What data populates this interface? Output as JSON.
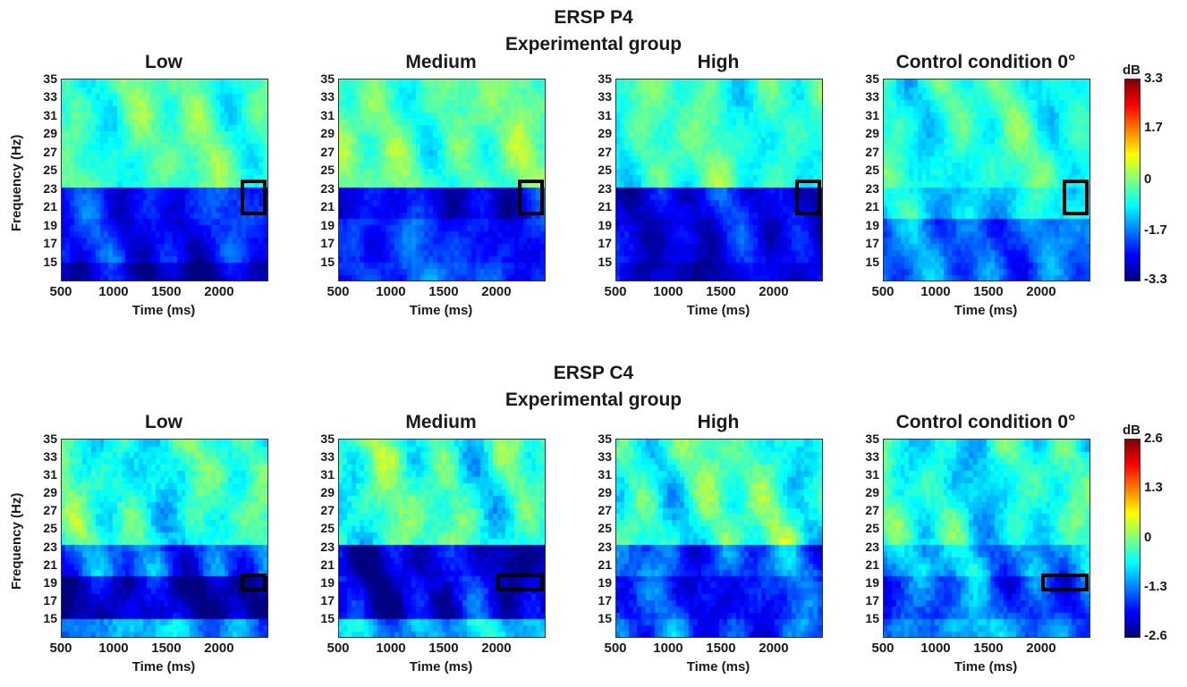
{
  "chart_data": [
    {
      "type": "heatmap",
      "section_title": "ERSP P4",
      "section_subtitle": "Experimental group",
      "ylabel": "Frequency (Hz)",
      "xlabel": "Time (ms)",
      "yticks": [
        "35",
        "33",
        "31",
        "29",
        "27",
        "25",
        "23",
        "21",
        "19",
        "17",
        "15"
      ],
      "xticks": [
        "500",
        "1000",
        "1500",
        "2000"
      ],
      "xlim": [
        500,
        2450
      ],
      "ylim": [
        13,
        35
      ],
      "colorbar": {
        "unit": "dB",
        "ticks": [
          "3.3",
          "1.7",
          "0",
          "-1.7",
          "-3.3"
        ],
        "range": [
          -3.3,
          3.3
        ],
        "colormap": "jet"
      },
      "panels": [
        {
          "title": "Low",
          "roi": {
            "time": [
              2200,
              2450
            ],
            "freq": [
              20,
              24
            ]
          },
          "mean_db_by_band": {
            "13-15": -2.9,
            "15-20": -2.4,
            "20-23": -2.3,
            "23-35": -0.4
          }
        },
        {
          "title": "Medium",
          "roi": {
            "time": [
              2200,
              2450
            ],
            "freq": [
              20,
              24
            ]
          },
          "mean_db_by_band": {
            "13-15": -2.0,
            "15-20": -2.2,
            "20-23": -2.6,
            "23-35": -0.3
          }
        },
        {
          "title": "High",
          "roi": {
            "time": [
              2200,
              2450
            ],
            "freq": [
              20,
              24
            ]
          },
          "mean_db_by_band": {
            "13-15": -2.8,
            "15-20": -2.6,
            "20-23": -2.5,
            "23-35": -0.5
          }
        },
        {
          "title": "Control condition 0°",
          "roi": {
            "time": [
              2200,
              2450
            ],
            "freq": [
              20,
              24
            ]
          },
          "mean_db_by_band": {
            "13-15": -1.8,
            "15-20": -1.8,
            "20-23": -1.0,
            "23-35": -0.6
          }
        }
      ]
    },
    {
      "type": "heatmap",
      "section_title": "ERSP C4",
      "section_subtitle": "Experimental group",
      "ylabel": "Frequency (Hz)",
      "xlabel": "Time (ms)",
      "yticks": [
        "35",
        "33",
        "31",
        "29",
        "27",
        "25",
        "23",
        "21",
        "19",
        "17",
        "15"
      ],
      "xticks": [
        "500",
        "1000",
        "1500",
        "2000"
      ],
      "xlim": [
        500,
        2450
      ],
      "ylim": [
        13,
        35
      ],
      "colorbar": {
        "unit": "dB",
        "ticks": [
          "2.6",
          "1.3",
          "0",
          "-1.3",
          "-2.6"
        ],
        "range": [
          -2.6,
          2.6
        ],
        "colormap": "jet"
      },
      "panels": [
        {
          "title": "Low",
          "roi": {
            "time": [
              2200,
              2450
            ],
            "freq": [
              18,
              20
            ]
          },
          "mean_db_by_band": {
            "13-15": -1.1,
            "15-20": -2.3,
            "20-23": -1.5,
            "23-35": -0.5
          }
        },
        {
          "title": "Medium",
          "roi": {
            "time": [
              2000,
              2450
            ],
            "freq": [
              18,
              20
            ]
          },
          "mean_db_by_band": {
            "13-15": -1.0,
            "15-20": -2.1,
            "20-23": -2.2,
            "23-35": -0.4
          }
        },
        {
          "title": "High",
          "roi": null,
          "mean_db_by_band": {
            "13-15": -1.6,
            "15-20": -1.8,
            "20-23": -1.5,
            "23-35": -0.4
          }
        },
        {
          "title": "Control condition 0°",
          "roi": {
            "time": [
              2000,
              2450
            ],
            "freq": [
              18,
              20
            ]
          },
          "mean_db_by_band": {
            "13-15": -1.2,
            "15-20": -1.5,
            "20-23": -1.1,
            "23-35": -0.6
          }
        }
      ]
    }
  ]
}
